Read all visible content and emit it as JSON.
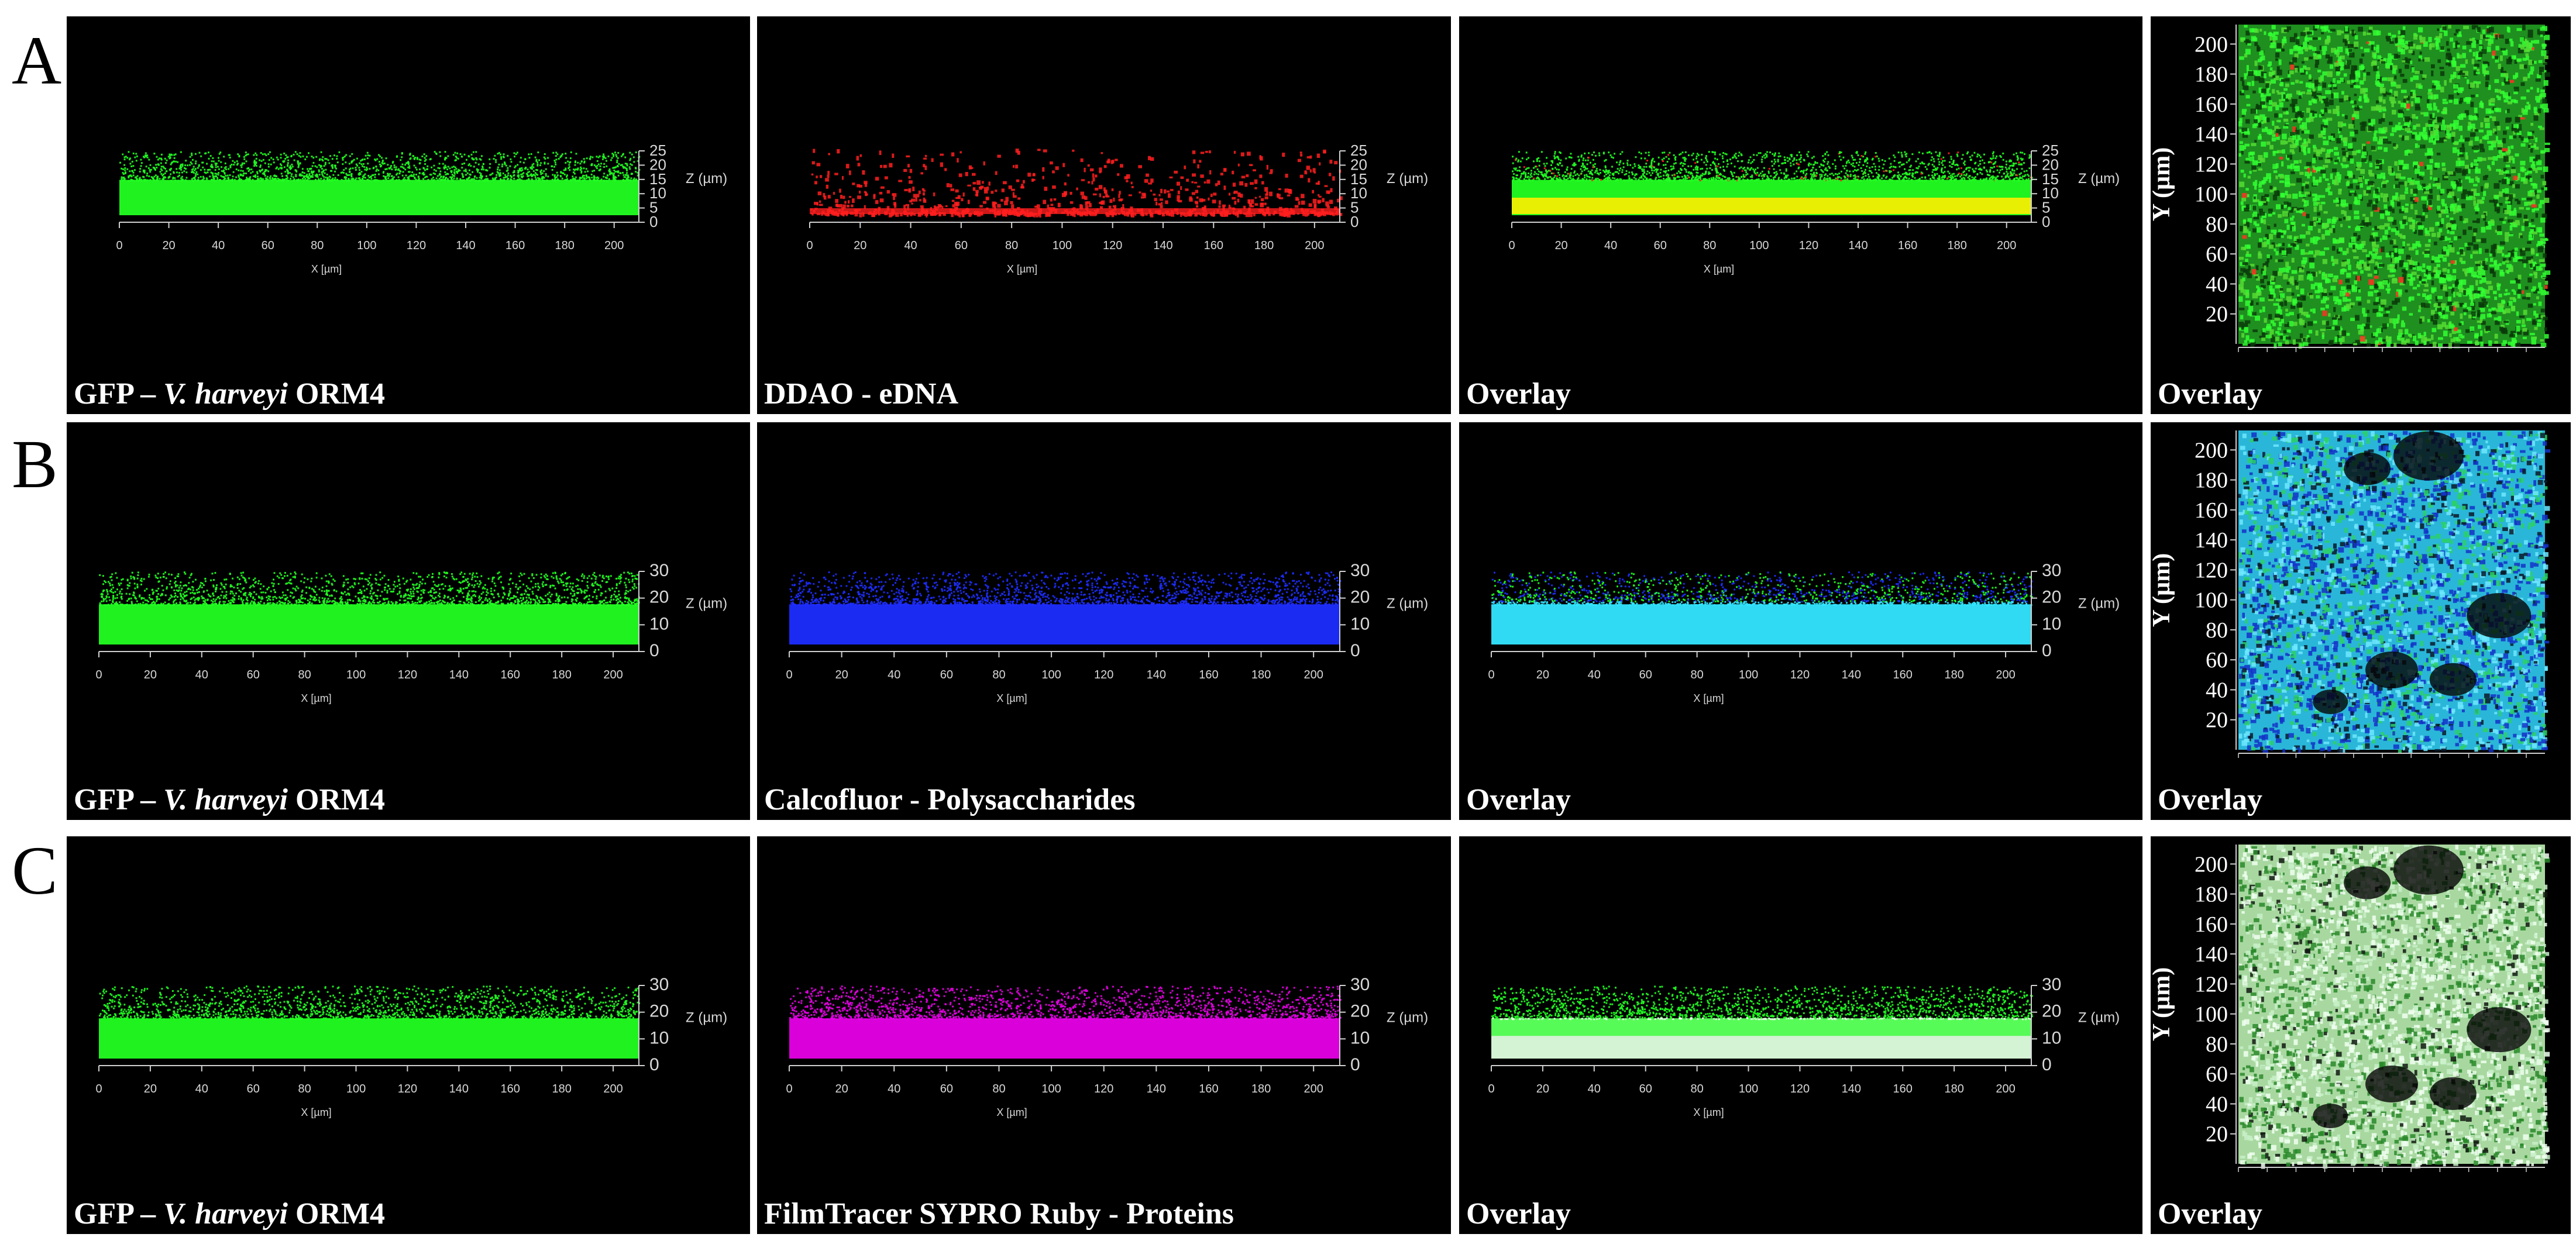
{
  "rows": [
    {
      "letter": "A",
      "panels": [
        {
          "caption_pre": "GFP – ",
          "caption_italic": "V. harveyi",
          "caption_post": " ORM4",
          "stain": "green",
          "zticks": [
            "0",
            "5",
            "10",
            "15",
            "20",
            "25"
          ],
          "zmax": 25
        },
        {
          "caption_pre": "DDAO - eDNA",
          "caption_italic": "",
          "caption_post": "",
          "stain": "red",
          "zticks": [
            "0",
            "5",
            "10",
            "15",
            "20",
            "25"
          ],
          "zmax": 25
        },
        {
          "caption_pre": "Overlay",
          "caption_italic": "",
          "caption_post": "",
          "stain": "green-red",
          "zticks": [
            "0",
            "5",
            "10",
            "15",
            "20",
            "25"
          ],
          "zmax": 25
        },
        {
          "caption_pre": "Overlay",
          "caption_italic": "",
          "caption_post": "",
          "stain": "top-green-red"
        }
      ]
    },
    {
      "letter": "B",
      "panels": [
        {
          "caption_pre": "GFP – ",
          "caption_italic": "V. harveyi",
          "caption_post": " ORM4",
          "stain": "green",
          "zticks": [
            "0",
            "10",
            "20",
            "30"
          ],
          "zmax": 30
        },
        {
          "caption_pre": "Calcofluor - Polysaccharides",
          "caption_italic": "",
          "caption_post": "",
          "stain": "blue",
          "zticks": [
            "0",
            "10",
            "20",
            "30"
          ],
          "zmax": 30
        },
        {
          "caption_pre": "Overlay",
          "caption_italic": "",
          "caption_post": "",
          "stain": "cyan",
          "zticks": [
            "0",
            "10",
            "20",
            "30"
          ],
          "zmax": 30
        },
        {
          "caption_pre": "Overlay",
          "caption_italic": "",
          "caption_post": "",
          "stain": "top-cyan"
        }
      ]
    },
    {
      "letter": "C",
      "panels": [
        {
          "caption_pre": "GFP – ",
          "caption_italic": "V. harveyi",
          "caption_post": " ORM4",
          "stain": "green",
          "zticks": [
            "0",
            "10",
            "20",
            "30"
          ],
          "zmax": 30
        },
        {
          "caption_pre": "FilmTracer SYPRO Ruby - Proteins",
          "caption_italic": "",
          "caption_post": "",
          "stain": "magenta",
          "zticks": [
            "0",
            "10",
            "20",
            "30"
          ],
          "zmax": 30
        },
        {
          "caption_pre": "Overlay",
          "caption_italic": "",
          "caption_post": "",
          "stain": "white-green",
          "zticks": [
            "0",
            "10",
            "20",
            "30"
          ],
          "zmax": 30
        },
        {
          "caption_pre": "Overlay",
          "caption_italic": "",
          "caption_post": "",
          "stain": "top-white-green"
        }
      ]
    }
  ],
  "side_axis": {
    "xticks": [
      "0",
      "20",
      "40",
      "60",
      "80",
      "100",
      "120",
      "140",
      "160",
      "180",
      "200"
    ],
    "xlabel": "X [µm]",
    "zlabel": "Z (µm)"
  },
  "top_axis": {
    "yticks": [
      "20",
      "40",
      "60",
      "80",
      "100",
      "120",
      "140",
      "160",
      "180",
      "200"
    ],
    "ylabel": "Y (µm)"
  },
  "colors": {
    "green": "#22ff22",
    "red": "#ff1e1e",
    "blue": "#1e2dff",
    "cyan": "#33e6ff",
    "magenta": "#e600e6",
    "yellow": "#ffee00"
  }
}
